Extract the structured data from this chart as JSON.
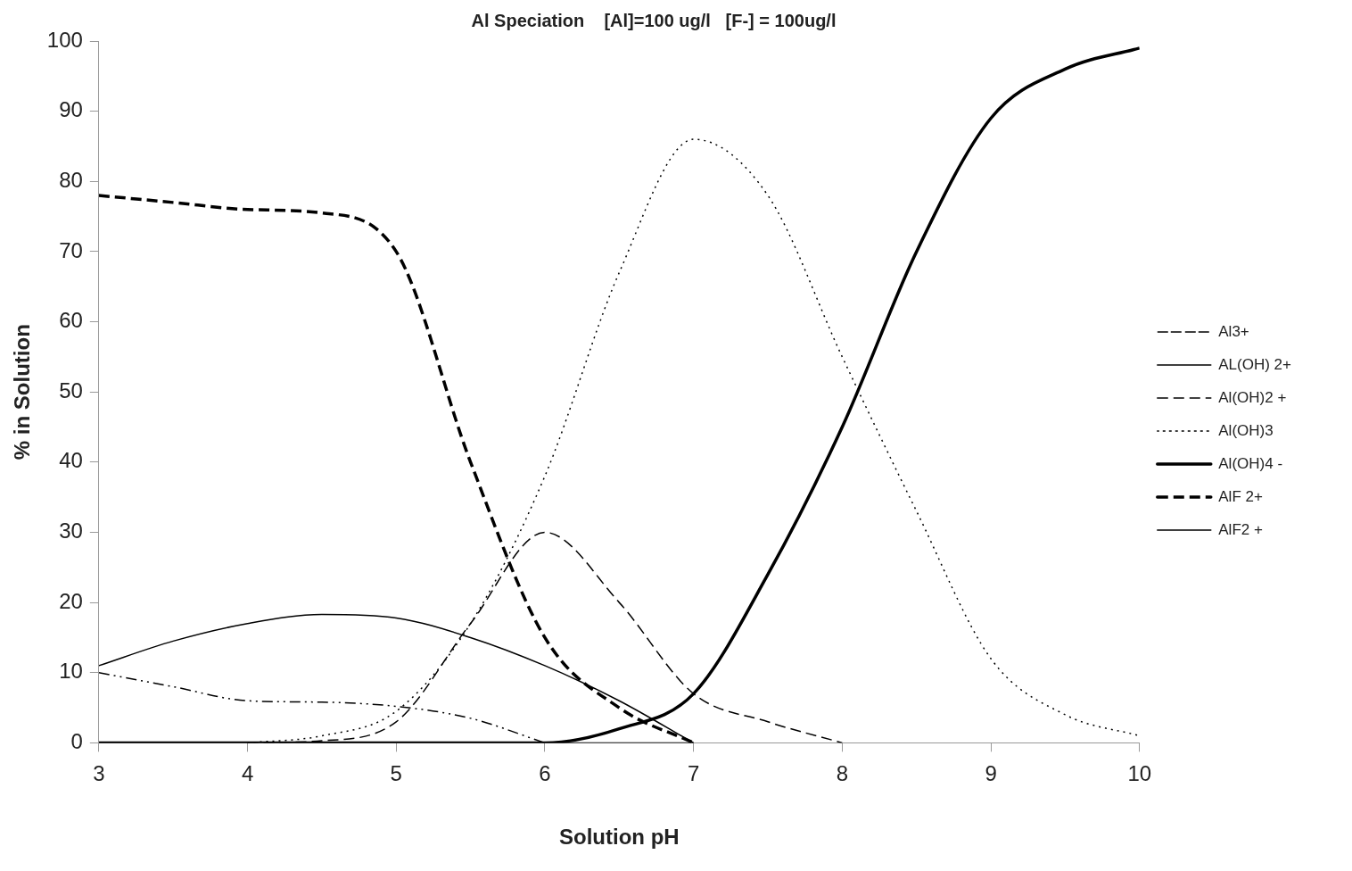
{
  "chart_data": {
    "type": "line",
    "title": "Al Speciation    [Al]=100 ug/l   [F-] = 100ug/l",
    "xlabel": "Solution pH",
    "ylabel": "% in Solution",
    "xlim": [
      3,
      10
    ],
    "xticks": [
      3,
      4,
      5,
      6,
      7,
      8,
      9,
      10
    ],
    "ylim": [
      0,
      100
    ],
    "yticks": [
      0,
      10,
      20,
      30,
      40,
      50,
      60,
      70,
      80,
      90,
      100
    ],
    "grid": false,
    "legend": "right",
    "marker": "none",
    "series": [
      {
        "name": "Al3+",
        "color": "#000000",
        "line_style": "dashdot",
        "x": [
          3,
          3.5,
          4,
          4.5,
          5,
          5.5,
          6
        ],
        "values": [
          10,
          8,
          6,
          5.8,
          5.2,
          3.5,
          0
        ]
      },
      {
        "name": "AL(OH) 2+",
        "color": "#000000",
        "line_style": "solid",
        "x": [
          3,
          3.5,
          4,
          4.5,
          5,
          5.5,
          6,
          6.5,
          7
        ],
        "values": [
          11,
          14.5,
          17,
          18.3,
          17.8,
          15,
          11,
          6,
          0
        ]
      },
      {
        "name": "Al(OH)2 +",
        "color": "#000000",
        "line_style": "dashed",
        "x": [
          4,
          4.5,
          5,
          5.5,
          6,
          6.5,
          7,
          7.5,
          8
        ],
        "values": [
          0,
          0.3,
          3,
          17,
          30,
          20,
          7,
          3,
          0
        ]
      },
      {
        "name": "Al(OH)3",
        "color": "#000000",
        "line_style": "dotted",
        "x": [
          4,
          4.5,
          5,
          5.5,
          6,
          6.5,
          7,
          7.5,
          8,
          8.5,
          9,
          9.5,
          10
        ],
        "values": [
          0,
          1,
          4.5,
          17,
          38,
          67,
          86,
          78,
          55,
          33,
          12,
          4,
          1
        ]
      },
      {
        "name": "Al(OH)4 -",
        "color": "#000000",
        "line_style": "solid",
        "x": [
          3,
          4,
          5,
          6,
          6.5,
          7,
          7.5,
          8,
          8.5,
          9,
          9.5,
          10
        ],
        "values": [
          0,
          0,
          0,
          0,
          2,
          7,
          24,
          45,
          70,
          89,
          96,
          99
        ]
      },
      {
        "name": "AlF 2+",
        "color": "#000000",
        "line_style": "dashed",
        "x": [
          3,
          3.5,
          4,
          4.5,
          5,
          5.5,
          6,
          6.5,
          7
        ],
        "values": [
          78,
          77,
          76,
          75.5,
          70,
          40,
          15,
          5,
          0
        ]
      },
      {
        "name": "AlF2 +",
        "color": "#000000",
        "line_style": "solid",
        "x": [
          3,
          4,
          5,
          6,
          7
        ],
        "values": [
          0,
          0,
          0,
          0,
          0
        ]
      }
    ]
  }
}
